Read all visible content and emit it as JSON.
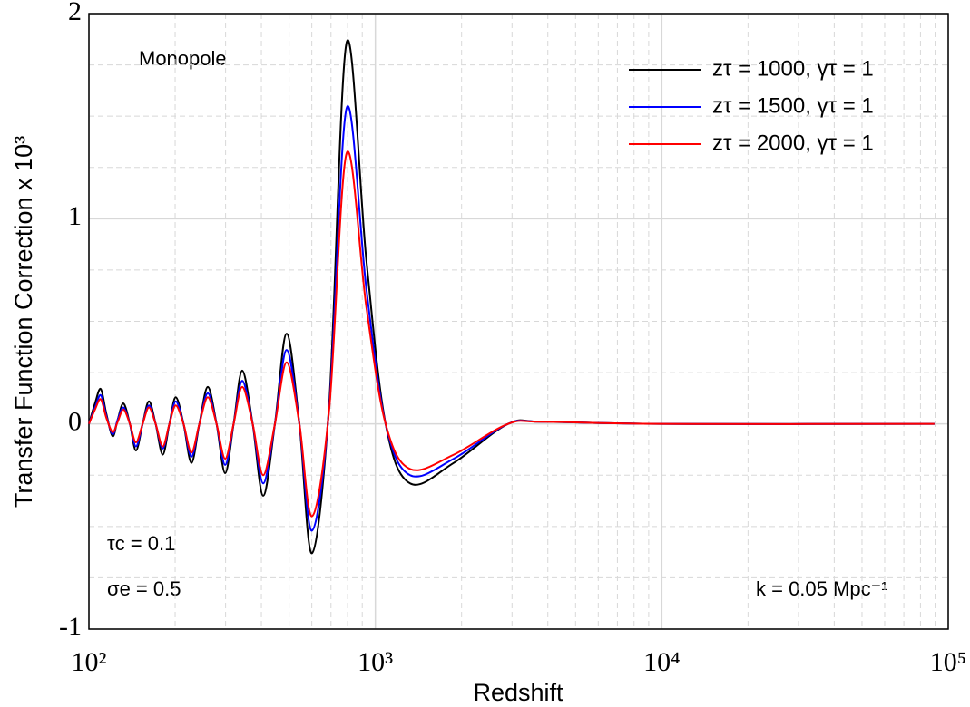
{
  "chart_data": {
    "type": "line",
    "x_label": "Redshift",
    "y_label": "Transfer Function Correction x 10³",
    "log_x": true,
    "xlim": [
      100,
      100000
    ],
    "ylim": [
      -1,
      2
    ],
    "xticks": [
      {
        "value": 100,
        "label": "10²"
      },
      {
        "value": 1000,
        "label": "10³"
      },
      {
        "value": 10000,
        "label": "10⁴"
      },
      {
        "value": 100000,
        "label": "10⁵"
      }
    ],
    "yticks": [
      -1,
      0,
      1,
      2
    ],
    "grid": true,
    "minor_grid": true,
    "legend": "upper right",
    "annotations": [
      "Monopole",
      "τc = 0.1",
      "σe = 0.5",
      "k = 0.05 Mpc⁻¹"
    ],
    "x": [
      100,
      105,
      110,
      115,
      121,
      126,
      132,
      139,
      146,
      154,
      162,
      171,
      181,
      191,
      201,
      214,
      228,
      243,
      260,
      279,
      299,
      320,
      343,
      373,
      406,
      446,
      490,
      543,
      601,
      690,
      794,
      930,
      1086,
      1322,
      1877,
      2905,
      3890,
      10000,
      89500
    ],
    "series": [
      {
        "name": "zτ = 1000, γτ = 1",
        "color": "#000000",
        "values": [
          0,
          0.1,
          0.17,
          0.05,
          -0.06,
          0.02,
          0.1,
          0,
          -0.13,
          0,
          0.11,
          0,
          -0.15,
          0,
          0.13,
          0,
          -0.19,
          0,
          0.18,
          0,
          -0.24,
          0,
          0.26,
          0,
          -0.35,
          0,
          0.44,
          0,
          -0.63,
          0.1,
          1.86,
          0.8,
          0,
          -0.29,
          -0.19,
          0,
          0.01,
          0,
          0
        ]
      },
      {
        "name": "zτ = 1500, γτ = 1",
        "color": "#0000ff",
        "values": [
          0,
          0.08,
          0.14,
          0.04,
          -0.05,
          0.02,
          0.08,
          0,
          -0.11,
          0,
          0.09,
          0,
          -0.12,
          0,
          0.11,
          0,
          -0.16,
          0,
          0.15,
          0,
          -0.2,
          0,
          0.21,
          0,
          -0.29,
          0,
          0.36,
          0,
          -0.52,
          0.08,
          1.54,
          0.66,
          0,
          -0.25,
          -0.17,
          0,
          0.01,
          0,
          0
        ]
      },
      {
        "name": "zτ = 2000, γτ = 1",
        "color": "#ff0000",
        "values": [
          0,
          0.07,
          0.12,
          0.03,
          -0.04,
          0.01,
          0.07,
          0,
          -0.09,
          0,
          0.08,
          0,
          -0.11,
          0,
          0.09,
          0,
          -0.14,
          0,
          0.13,
          0,
          -0.17,
          0,
          0.18,
          0,
          -0.25,
          0,
          0.3,
          0,
          -0.45,
          0.07,
          1.32,
          0.57,
          0,
          -0.22,
          -0.15,
          0,
          0.01,
          0,
          0
        ]
      }
    ]
  }
}
